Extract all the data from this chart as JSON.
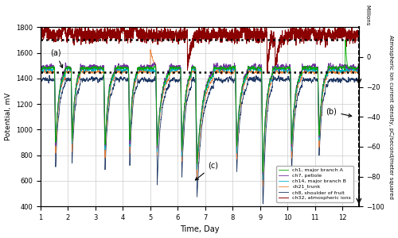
{
  "xlabel": "Time, Day",
  "ylabel_left": "Potential, mV",
  "ylabel_right": "Atmospheric ion current density, pC/second/meter squared",
  "ylim_left": [
    400,
    1800
  ],
  "ylim_right": [
    -100,
    20
  ],
  "xlim": [
    1,
    12.6
  ],
  "yticks_left": [
    400,
    600,
    800,
    1000,
    1200,
    1400,
    1600,
    1800
  ],
  "yticks_right": [
    -100,
    -80,
    -60,
    -40,
    -20,
    0
  ],
  "xticks": [
    1,
    2,
    3,
    4,
    5,
    6,
    7,
    8,
    9,
    10,
    11,
    12
  ],
  "dotted_line_y1": 1700,
  "dotted_line_y2": 1450,
  "colors": {
    "ch1": "#00aa00",
    "ch7": "#7030a0",
    "ch14": "#00b0c8",
    "ch21": "#ed7d31",
    "ch8": "#1f3864",
    "ch32": "#8b0000"
  },
  "legend_labels": [
    "ch1, major branch A",
    "ch7, petiole",
    "ch14, major branch B",
    "ch21_trunk",
    "ch8, shoulder of fruit",
    "ch32, atmospheric ions"
  ],
  "background_color": "#ffffff",
  "grid_color": "#cccccc",
  "drop_centers": [
    1.55,
    2.15,
    3.35,
    4.25,
    5.25,
    6.15,
    6.7,
    8.15,
    9.1,
    10.15,
    11.15
  ],
  "drop_rise_w": [
    0.08,
    0.07,
    0.09,
    0.08,
    0.1,
    0.09,
    0.1,
    0.1,
    0.09,
    0.1,
    0.09
  ],
  "drop_fall_w": [
    0.35,
    0.3,
    0.35,
    0.28,
    0.45,
    0.35,
    0.6,
    0.4,
    0.35,
    0.38,
    0.32
  ],
  "drop_depth_base": [
    640,
    620,
    670,
    640,
    680,
    720,
    830,
    680,
    900,
    670,
    590
  ]
}
